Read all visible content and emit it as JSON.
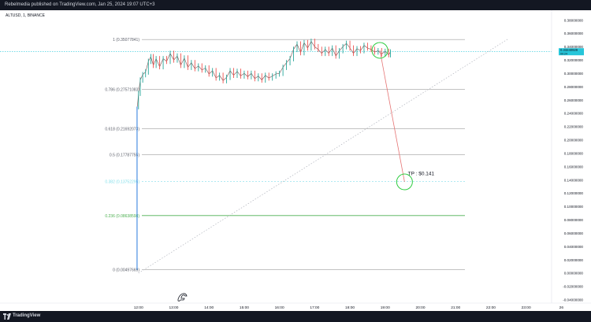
{
  "header": {
    "published_text": "Rebelmedia published on TradingView.com, Jan 25, 2024 19:07 UTC+3"
  },
  "symbol": {
    "label": "ALTUSD, 1, BINANCE"
  },
  "footer": {
    "brand": "TradingView"
  },
  "colors": {
    "background": "#ffffff",
    "candle_up": "#26a69a",
    "candle_down": "#ef5350",
    "price_line": "#26c6da",
    "fib_main": "#9e9e9e",
    "fib_382": "#80deea",
    "fib_236": "#4caf50",
    "arrow": "#e57373",
    "circle": "#2ecc40"
  },
  "chart_data": {
    "type": "line",
    "title": "",
    "xlabel": "",
    "ylabel": "",
    "x_ticks": [
      "12:00",
      "13:00",
      "14:00",
      "15:00",
      "16:00",
      "17:00",
      "18:00",
      "19:00",
      "20:00",
      "21:00",
      "22:00",
      "23:00",
      "26"
    ],
    "y_ticks": [
      "0.38000000",
      "0.36000000",
      "0.34000000",
      "0.32000000",
      "0.30000000",
      "0.28000000",
      "0.26000000",
      "0.24000000",
      "0.22000000",
      "0.20000000",
      "0.18000000",
      "0.16000000",
      "0.14000000",
      "0.12000000",
      "0.10000000",
      "0.08000000",
      "0.06000000",
      "0.04000000",
      "0.02000000",
      "0.00000000",
      "-0.02000000",
      "-0.04000000"
    ],
    "ylim": [
      -0.045,
      0.39
    ],
    "xlim_hours": [
      11.2,
      23.5
    ],
    "grid": false,
    "price_series": [
      [
        11.97,
        0.25
      ],
      [
        12.0,
        0.27
      ],
      [
        12.05,
        0.29
      ],
      [
        12.12,
        0.298
      ],
      [
        12.2,
        0.302
      ],
      [
        12.28,
        0.318
      ],
      [
        12.35,
        0.325
      ],
      [
        12.42,
        0.312
      ],
      [
        12.5,
        0.322
      ],
      [
        12.6,
        0.31
      ],
      [
        12.7,
        0.322
      ],
      [
        12.8,
        0.318
      ],
      [
        12.9,
        0.33
      ],
      [
        13.0,
        0.32
      ],
      [
        13.1,
        0.326
      ],
      [
        13.2,
        0.312
      ],
      [
        13.3,
        0.323
      ],
      [
        13.4,
        0.309
      ],
      [
        13.5,
        0.316
      ],
      [
        13.6,
        0.307
      ],
      [
        13.7,
        0.311
      ],
      [
        13.8,
        0.305
      ],
      [
        13.9,
        0.308
      ],
      [
        14.0,
        0.299
      ],
      [
        14.1,
        0.304
      ],
      [
        14.2,
        0.293
      ],
      [
        14.3,
        0.297
      ],
      [
        14.4,
        0.289
      ],
      [
        14.5,
        0.294
      ],
      [
        14.6,
        0.304
      ],
      [
        14.7,
        0.297
      ],
      [
        14.8,
        0.303
      ],
      [
        14.9,
        0.296
      ],
      [
        15.0,
        0.3
      ],
      [
        15.1,
        0.295
      ],
      [
        15.2,
        0.3
      ],
      [
        15.3,
        0.292
      ],
      [
        15.4,
        0.296
      ],
      [
        15.5,
        0.29
      ],
      [
        15.6,
        0.297
      ],
      [
        15.7,
        0.293
      ],
      [
        15.8,
        0.296
      ],
      [
        15.9,
        0.299
      ],
      [
        16.0,
        0.3
      ],
      [
        16.1,
        0.309
      ],
      [
        16.2,
        0.316
      ],
      [
        16.3,
        0.322
      ],
      [
        16.4,
        0.336
      ],
      [
        16.5,
        0.344
      ],
      [
        16.6,
        0.331
      ],
      [
        16.7,
        0.346
      ],
      [
        16.8,
        0.338
      ],
      [
        16.9,
        0.348
      ],
      [
        17.0,
        0.34
      ],
      [
        17.1,
        0.336
      ],
      [
        17.2,
        0.33
      ],
      [
        17.3,
        0.336
      ],
      [
        17.4,
        0.33
      ],
      [
        17.5,
        0.338
      ],
      [
        17.6,
        0.326
      ],
      [
        17.7,
        0.334
      ],
      [
        17.8,
        0.34
      ],
      [
        17.9,
        0.345
      ],
      [
        18.0,
        0.338
      ],
      [
        18.1,
        0.33
      ],
      [
        18.2,
        0.337
      ],
      [
        18.3,
        0.334
      ],
      [
        18.4,
        0.342
      ],
      [
        18.5,
        0.338
      ],
      [
        18.6,
        0.336
      ],
      [
        18.7,
        0.332
      ],
      [
        18.8,
        0.334
      ],
      [
        18.9,
        0.329
      ],
      [
        19.0,
        0.333
      ],
      [
        19.1,
        0.328
      ],
      [
        19.15,
        0.332
      ]
    ],
    "spike_low": 0.005,
    "current_price": {
      "value": 0.33240929,
      "label": "0.33240929",
      "sublabel": "00:24"
    },
    "fib_levels": [
      {
        "ratio": 1,
        "value": 0.35077841,
        "label": "1 (0.35077841)"
      },
      {
        "ratio": 0.786,
        "value": 0.27571083,
        "label": "0.786 (0.27571083)"
      },
      {
        "ratio": 0.618,
        "value": 0.21692073,
        "label": "0.618 (0.21692073)"
      },
      {
        "ratio": 0.5,
        "value": 0.17787755,
        "label": "0.5 (0.17787755)"
      },
      {
        "ratio": 0.382,
        "value": 0.13752295,
        "label": "0.382 (0.13752295)"
      },
      {
        "ratio": 0.236,
        "value": 0.08638598,
        "label": "0.236 (0.08638598)"
      },
      {
        "ratio": 0,
        "value": 0.00497669,
        "label": "0 (0.00497669)"
      }
    ],
    "annotations": [
      {
        "type": "circle",
        "x": 18.85,
        "y": 0.3345
      },
      {
        "type": "arrow",
        "x1": 18.85,
        "y1": 0.3345,
        "x2": 19.55,
        "y2": 0.137
      },
      {
        "type": "circle",
        "x": 19.55,
        "y": 0.137
      },
      {
        "type": "text",
        "x": 19.6,
        "y": 0.147,
        "text": "TP : $0.141"
      },
      {
        "type": "trendline_dotted",
        "x1": 12.0,
        "y1": 0.0,
        "x2": 22.5,
        "y2": 0.352
      }
    ]
  }
}
